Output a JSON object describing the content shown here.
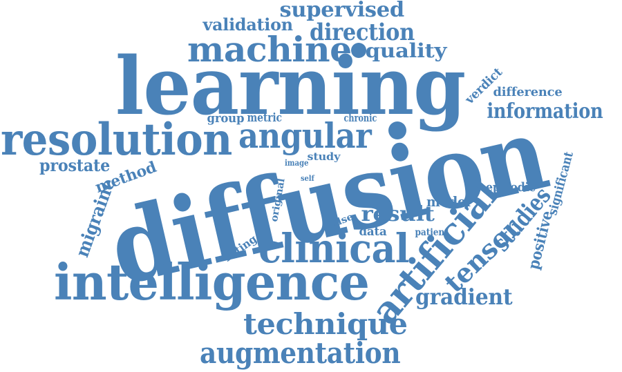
{
  "word_cloud": {
    "color": "#4a82b8",
    "words": [
      {
        "text": "supervised"
      },
      {
        "text": "validation"
      },
      {
        "text": "direction"
      },
      {
        "text": "machine"
      },
      {
        "text": "quality"
      },
      {
        "text": "learning"
      },
      {
        "text": "verdict"
      },
      {
        "text": "difference"
      },
      {
        "text": "information"
      },
      {
        "text": "resolution"
      },
      {
        "text": "angular"
      },
      {
        "text": "group"
      },
      {
        "text": "metric"
      },
      {
        "text": "chronic"
      },
      {
        "text": "prostate"
      },
      {
        "text": "method"
      },
      {
        "text": "image"
      },
      {
        "text": "study"
      },
      {
        "text": "diffusion"
      },
      {
        "text": "self"
      },
      {
        "text": "significant"
      },
      {
        "text": "episodic"
      },
      {
        "text": "migraine"
      },
      {
        "text": "original"
      },
      {
        "text": "model"
      },
      {
        "text": "studies"
      },
      {
        "text": "result"
      },
      {
        "text": "false"
      },
      {
        "text": "data"
      },
      {
        "text": "patient"
      },
      {
        "text": "positive"
      },
      {
        "text": "fitting"
      },
      {
        "text": "clinical"
      },
      {
        "text": "artificial"
      },
      {
        "text": "tensor"
      },
      {
        "text": "intelligence"
      },
      {
        "text": "gradient"
      },
      {
        "text": "technique"
      },
      {
        "text": "augmentation"
      }
    ]
  }
}
